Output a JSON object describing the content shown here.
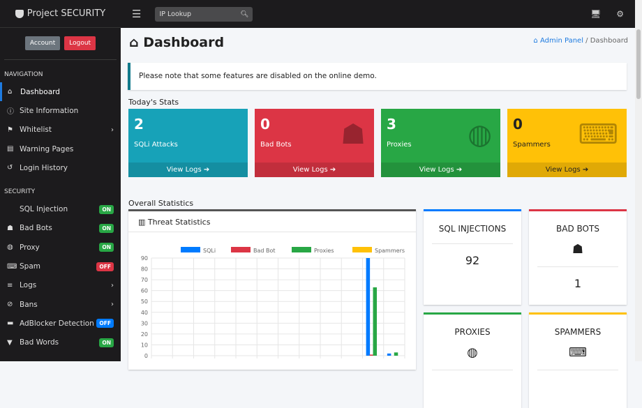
{
  "brand": "Project SECURITY",
  "search": {
    "placeholder": "IP Lookup"
  },
  "account": {
    "account": "Account",
    "logout": "Logout"
  },
  "nav": {
    "heading": "NAVIGATION",
    "items": [
      {
        "label": "Dashboard",
        "icon": "home-icon"
      },
      {
        "label": "Site Information",
        "icon": "info-icon"
      },
      {
        "label": "Whitelist",
        "icon": "flag-icon"
      },
      {
        "label": "Warning Pages",
        "icon": "file-icon"
      },
      {
        "label": "Login History",
        "icon": "history-icon"
      }
    ]
  },
  "security": {
    "heading": "SECURITY",
    "items": [
      {
        "label": "SQL Injection",
        "badge": "ON",
        "color": "#28a745"
      },
      {
        "label": "Bad Bots",
        "badge": "ON",
        "color": "#28a745"
      },
      {
        "label": "Proxy",
        "badge": "ON",
        "color": "#28a745"
      },
      {
        "label": "Spam",
        "badge": "OFF",
        "color": "#dc3545"
      },
      {
        "label": "Logs"
      },
      {
        "label": "Bans"
      },
      {
        "label": "AdBlocker Detection",
        "badge": "OFF",
        "color": "#007bff"
      },
      {
        "label": "Bad Words",
        "badge": "ON",
        "color": "#28a745"
      }
    ]
  },
  "page": {
    "title": "Dashboard",
    "crumb_home": "Admin Panel",
    "crumb_current": "Dashboard",
    "crumb_sep": "/",
    "alert": "Please note that some features are disabled on the online demo.",
    "today": "Today's Stats",
    "overall": "Overall Statistics"
  },
  "today": [
    {
      "value": "2",
      "label": "SQLi Attacks",
      "link": "View Logs",
      "color": "#17a2b8"
    },
    {
      "value": "0",
      "label": "Bad Bots",
      "link": "View Logs",
      "color": "#dc3545"
    },
    {
      "value": "3",
      "label": "Proxies",
      "link": "View Logs",
      "color": "#28a745"
    },
    {
      "value": "0",
      "label": "Spammers",
      "link": "View Logs",
      "color": "#ffc107"
    }
  ],
  "chart_title": "Threat Statistics",
  "stats": [
    {
      "title": "SQL INJECTIONS",
      "value": "92",
      "color": "#007bff"
    },
    {
      "title": "BAD BOTS",
      "value": "1",
      "color": "#dc3545"
    },
    {
      "title": "PROXIES",
      "color": "#28a745"
    },
    {
      "title": "SPAMMERS",
      "color": "#ffc107"
    }
  ],
  "chart_data": {
    "type": "bar",
    "ylim": [
      0,
      90
    ],
    "yticks": [
      0,
      10,
      20,
      30,
      40,
      50,
      60,
      70,
      80,
      90
    ],
    "grid": true,
    "legend": "top",
    "categories": [
      "",
      "",
      "",
      "",
      "",
      "",
      "",
      "",
      "",
      "",
      "",
      ""
    ],
    "series": [
      {
        "name": "SQLi",
        "color": "#007bff",
        "values": [
          0,
          0,
          0,
          0,
          0,
          0,
          0,
          0,
          0,
          0,
          90,
          2
        ]
      },
      {
        "name": "Bad Bot",
        "color": "#dc3545",
        "values": [
          0,
          0,
          0,
          0,
          0,
          0,
          0,
          0,
          0,
          0,
          1,
          0
        ]
      },
      {
        "name": "Proxies",
        "color": "#28a745",
        "values": [
          0,
          0,
          0,
          0,
          0,
          0,
          0,
          0,
          0,
          0,
          63,
          3
        ]
      },
      {
        "name": "Spammers",
        "color": "#ffc107",
        "values": [
          0,
          0,
          0,
          0,
          0,
          0,
          0,
          0,
          0,
          0,
          0,
          0
        ]
      }
    ]
  }
}
